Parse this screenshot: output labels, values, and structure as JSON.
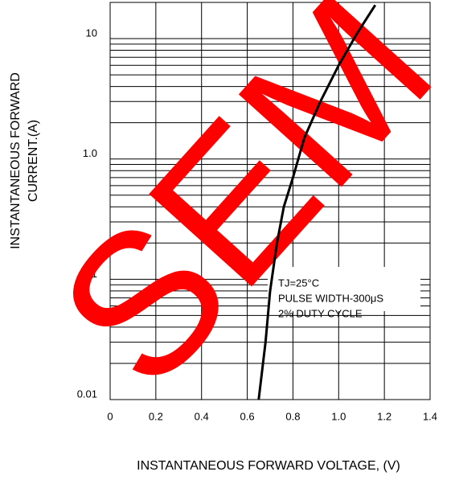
{
  "chart_data": {
    "type": "line",
    "log_y": true,
    "grid": true,
    "minor_grid": true,
    "x_label": "INSTANTANEOUS FORWARD VOLTAGE, (V)",
    "y_label": [
      "INSTANTANEOUS FORWARD",
      "CURRENT.(A)"
    ],
    "annotations": [
      "TJ=25°C",
      "PULSE WIDTH-300μS",
      "2% DUTY CYCLE"
    ],
    "watermark": "SEM",
    "watermark_color": "#ff0000",
    "xlim": [
      0,
      1.4
    ],
    "xticks": [
      0,
      0.2,
      0.4,
      0.6,
      0.8,
      {
        "value": 1,
        "label": "1.0"
      },
      1.2,
      1.4
    ],
    "ylim": [
      0.01,
      20
    ],
    "yticks": [
      0.01,
      0.1,
      {
        "value": 1,
        "label": "1.0"
      },
      10
    ],
    "series": [
      {
        "color": "#000000",
        "x": [
          0.65,
          0.68,
          0.7,
          0.73,
          0.76,
          0.8,
          0.85,
          0.92,
          1.0,
          1.08,
          1.16
        ],
        "values": [
          0.01,
          0.03,
          0.08,
          0.2,
          0.4,
          0.7,
          1.5,
          3,
          6,
          11,
          19
        ]
      }
    ]
  }
}
